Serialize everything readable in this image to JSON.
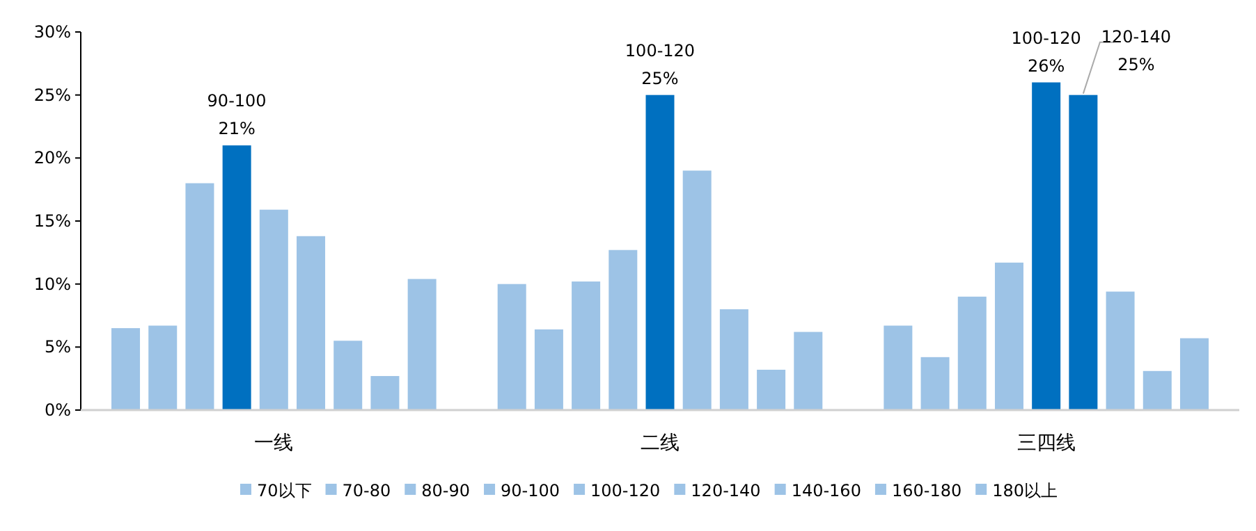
{
  "chart_data": {
    "type": "bar",
    "categories": [
      "一线",
      "二线",
      "三四线"
    ],
    "series": [
      {
        "name": "70以下",
        "color": "#9dc3e6",
        "colors": [
          "#9dc3e6",
          "#9dc3e6",
          "#9dc3e6"
        ],
        "values": [
          6.5,
          10.0,
          6.7
        ]
      },
      {
        "name": "70-80",
        "color": "#9dc3e6",
        "colors": [
          "#9dc3e6",
          "#9dc3e6",
          "#9dc3e6"
        ],
        "values": [
          6.7,
          6.4,
          4.2
        ]
      },
      {
        "name": "80-90",
        "color": "#9dc3e6",
        "colors": [
          "#9dc3e6",
          "#9dc3e6",
          "#9dc3e6"
        ],
        "values": [
          18.0,
          10.2,
          9.0
        ]
      },
      {
        "name": "90-100",
        "color": "#9dc3e6",
        "colors": [
          "#0070c0",
          "#9dc3e6",
          "#9dc3e6"
        ],
        "values": [
          21,
          12.7,
          11.7
        ],
        "value_labels": [
          "21%",
          null,
          null
        ]
      },
      {
        "name": "100-120",
        "color": "#9dc3e6",
        "colors": [
          "#9dc3e6",
          "#0070c0",
          "#0070c0"
        ],
        "values": [
          15.9,
          25,
          26
        ],
        "value_labels": [
          null,
          "25%",
          "26%"
        ]
      },
      {
        "name": "120-140",
        "color": "#9dc3e6",
        "colors": [
          "#9dc3e6",
          "#9dc3e6",
          "#0070c0"
        ],
        "values": [
          13.8,
          19.0,
          25
        ],
        "value_labels": [
          null,
          null,
          "25%"
        ]
      },
      {
        "name": "140-160",
        "color": "#9dc3e6",
        "colors": [
          "#9dc3e6",
          "#9dc3e6",
          "#9dc3e6"
        ],
        "values": [
          5.5,
          8.0,
          9.4
        ]
      },
      {
        "name": "160-180",
        "color": "#9dc3e6",
        "colors": [
          "#9dc3e6",
          "#9dc3e6",
          "#9dc3e6"
        ],
        "values": [
          2.7,
          3.2,
          3.1
        ]
      },
      {
        "name": "180以上",
        "color": "#9dc3e6",
        "colors": [
          "#9dc3e6",
          "#9dc3e6",
          "#9dc3e6"
        ],
        "values": [
          10.4,
          6.2,
          5.7
        ]
      }
    ],
    "ylim": [
      0,
      30
    ],
    "yticks": [
      {
        "value": 0,
        "label": "0%"
      },
      {
        "value": 5,
        "label": "5%"
      },
      {
        "value": 10,
        "label": "10%"
      },
      {
        "value": 15,
        "label": "15%"
      },
      {
        "value": 20,
        "label": "20%"
      },
      {
        "value": 25,
        "label": "25%"
      },
      {
        "value": 30,
        "label": "30%"
      }
    ],
    "legend": "bottom",
    "grid": false
  }
}
